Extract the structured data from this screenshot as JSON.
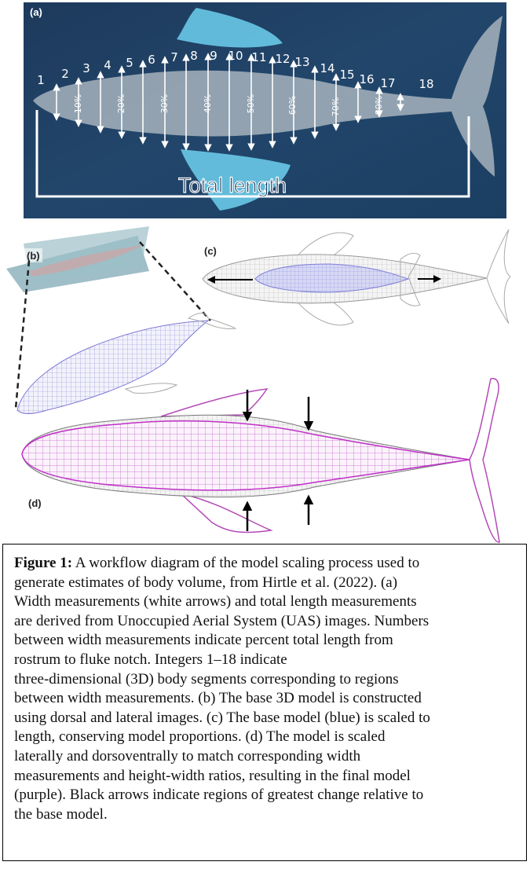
{
  "panel_a": {
    "label": "(a)",
    "segments": [
      "1",
      "2",
      "3",
      "4",
      "5",
      "6",
      "7",
      "8",
      "9",
      "10",
      "11",
      "12",
      "13",
      "14",
      "15",
      "16",
      "17",
      "18"
    ],
    "percents": [
      "10%",
      "20%",
      "30%",
      "40%",
      "50%",
      "60%",
      "70%",
      "80%"
    ],
    "total_length": "Total length"
  },
  "panel_b": {
    "label": "(b)"
  },
  "panel_c": {
    "label": "(c)"
  },
  "panel_d": {
    "label": "(d)"
  },
  "caption": {
    "title": "Figure 1:",
    "lines": [
      "A workflow diagram of the model scaling process used to",
      "generate estimates of body volume, from Hirtle et al. (2022). (a)",
      "Width measurements (white arrows) and total length measurements",
      "are derived from Unoccupied Aerial System (UAS) images. Numbers",
      "between width measurements indicate percent total length from",
      "rostrum to fluke notch.  Integers 1–18 indicate",
      "three-dimensional (3D) body segments corresponding to regions",
      "between width measurements. (b) The base 3D model is constructed",
      "using dorsal and lateral images. (c) The base model (blue) is scaled to",
      "length, conserving model proportions. (d) The model is scaled",
      "laterally and dorsoventrally to match corresponding width",
      "measurements and height-width ratios, resulting in the final model",
      "(purple). Black arrows indicate regions of greatest change relative to",
      "the base model."
    ]
  }
}
